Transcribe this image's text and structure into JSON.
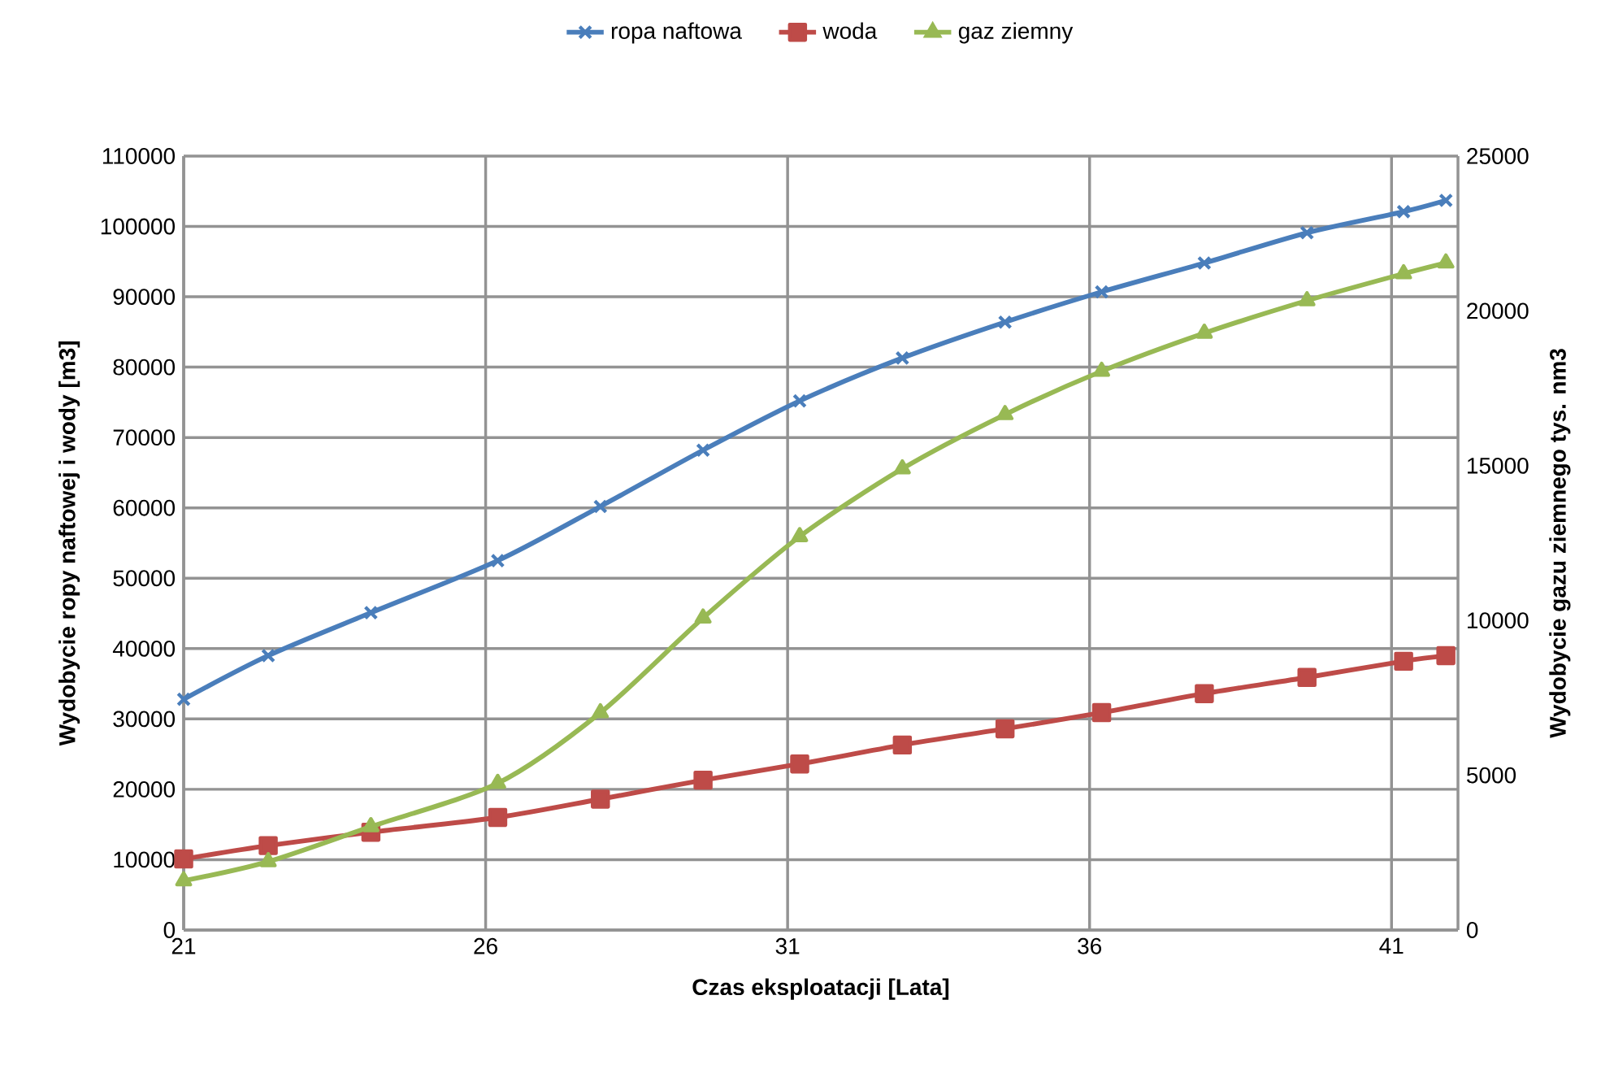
{
  "chart_data": {
    "type": "line",
    "xlabel": "Czas eksploatacji  [Lata]",
    "ylabel": "Wydobycie ropy naftowej i wody [m3]",
    "y2label": "Wydobycie gazu ziemnego tys. nm3",
    "xlim": [
      21,
      42.1
    ],
    "xticks": [
      21,
      26,
      31,
      36,
      41
    ],
    "ylim": [
      0,
      110000
    ],
    "yticks": [
      0,
      10000,
      20000,
      30000,
      40000,
      50000,
      60000,
      70000,
      80000,
      90000,
      100000,
      110000
    ],
    "y2lim": [
      0,
      25000
    ],
    "y2ticks": [
      0,
      5000,
      10000,
      15000,
      20000,
      25000
    ],
    "grid": true,
    "legend": "top",
    "x": [
      21,
      22.4,
      24.1,
      26.2,
      27.9,
      29.6,
      31.2,
      32.9,
      34.6,
      36.2,
      37.9,
      39.6,
      41.2,
      41.9
    ],
    "series": [
      {
        "name": "ropa naftowa",
        "color": "#4a7ebb",
        "marker": "cross",
        "values": [
          32800,
          39000,
          45100,
          52500,
          60200,
          68200,
          75200,
          81300,
          86400,
          90700,
          94800,
          99100,
          102100,
          103700
        ]
      },
      {
        "name": "woda",
        "color": "#be4b48",
        "marker": "square",
        "values": [
          10100,
          12000,
          13900,
          16000,
          18600,
          21300,
          23600,
          26300,
          28600,
          30900,
          33600,
          35900,
          38200,
          39000
        ]
      },
      {
        "name": "gaz ziemny",
        "color": "#98b954",
        "marker": "triangle",
        "axis": "y2",
        "values": [
          1590,
          2210,
          3340,
          4740,
          7020,
          10080,
          12710,
          14900,
          16650,
          18050,
          19280,
          20330,
          21200,
          21550
        ]
      }
    ]
  }
}
